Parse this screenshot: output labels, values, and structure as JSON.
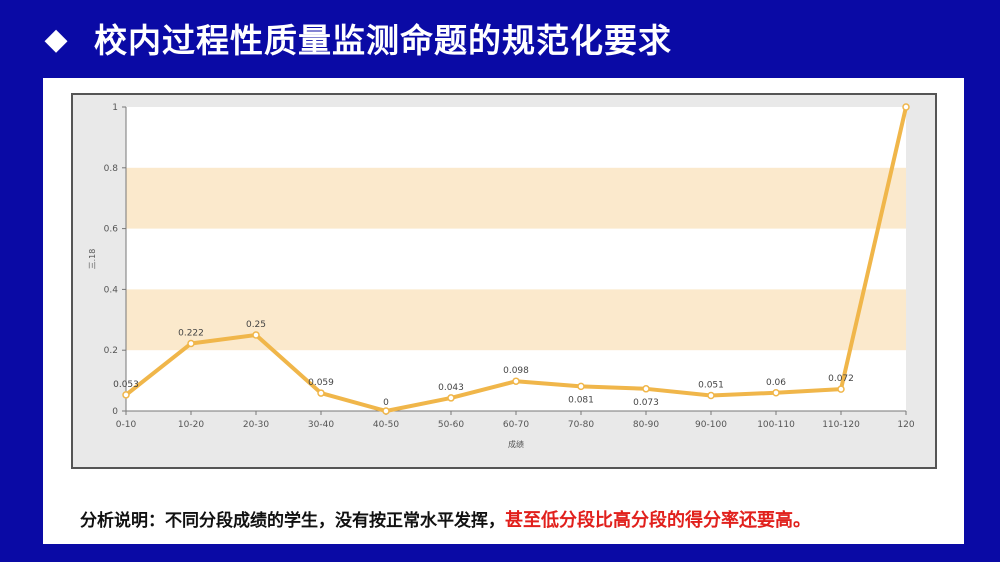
{
  "header": {
    "bullet": "◆",
    "title": "校内过程性质量监测命题的规范化要求"
  },
  "caption": {
    "normal": "分析说明：不同分段成绩的学生，没有按正常水平发挥，",
    "highlight": "甚至低分段比高分段的得分率还要高。"
  },
  "colors": {
    "background": "#0a0aa5",
    "line": "#f0b64a",
    "band": "#fbe9cc",
    "highlight_text": "#e1201c"
  },
  "chart_data": {
    "type": "line",
    "categories": [
      "0-10",
      "10-20",
      "20-30",
      "30-40",
      "40-50",
      "50-60",
      "60-70",
      "70-80",
      "80-90",
      "90-100",
      "100-110",
      "110-120",
      "120"
    ],
    "series": [
      {
        "values": [
          0.053,
          0.222,
          0.25,
          0.059,
          0,
          0.043,
          0.098,
          0.081,
          0.073,
          0.051,
          0.06,
          0.072,
          1
        ]
      }
    ],
    "data_labels": [
      "0.053",
      "0.222",
      "0.25",
      "0.059",
      "0",
      "0.043",
      "0.098",
      "0.081",
      "0.073",
      "0.051",
      "0.06",
      "0.072",
      ""
    ],
    "xlabel": "成绩",
    "ylabel": "三.18",
    "ylim": [
      0,
      1
    ],
    "yticks": [
      "0",
      "0.2",
      "0.4",
      "0.6",
      "0.8",
      "1"
    ],
    "ytick_values": [
      0,
      0.2,
      0.4,
      0.6,
      0.8,
      1
    ],
    "bands": [
      [
        0.2,
        0.4
      ],
      [
        0.6,
        0.8
      ]
    ]
  }
}
